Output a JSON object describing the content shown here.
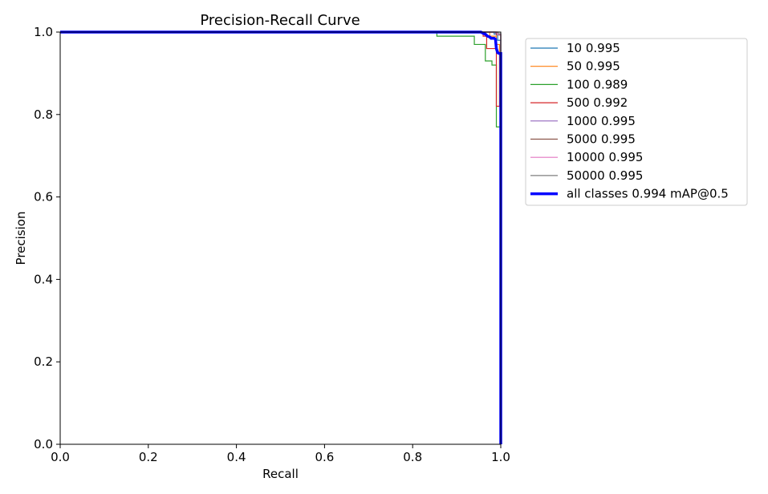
{
  "chart_data": {
    "type": "line",
    "title": "Precision-Recall Curve",
    "xlabel": "Recall",
    "ylabel": "Precision",
    "xlim": [
      0,
      1
    ],
    "ylim": [
      0,
      1
    ],
    "xticks": [
      "0.0",
      "0.2",
      "0.4",
      "0.6",
      "0.8",
      "1.0"
    ],
    "yticks": [
      "0.0",
      "0.2",
      "0.4",
      "0.6",
      "0.8",
      "1.0"
    ],
    "grid": false,
    "legend_position": "outside-right-top",
    "series": [
      {
        "name": "10 0.995",
        "color": "#1f77b4",
        "width": 1.2,
        "points": [
          [
            0,
            1.0
          ],
          [
            0.985,
            1.0
          ],
          [
            0.985,
            0.995
          ],
          [
            0.993,
            0.995
          ],
          [
            0.993,
            0.98
          ],
          [
            0.998,
            0.98
          ],
          [
            1.0,
            0.98
          ],
          [
            1.0,
            0.0
          ]
        ]
      },
      {
        "name": "50 0.995",
        "color": "#ff7f0e",
        "width": 1.2,
        "points": [
          [
            0,
            1.0
          ],
          [
            0.975,
            1.0
          ],
          [
            0.975,
            0.99
          ],
          [
            0.99,
            0.99
          ],
          [
            0.99,
            0.97
          ],
          [
            0.997,
            0.97
          ],
          [
            0.997,
            0.82
          ],
          [
            1.0,
            0.82
          ],
          [
            1.0,
            0.0
          ]
        ]
      },
      {
        "name": "100 0.989",
        "color": "#2ca02c",
        "width": 1.2,
        "points": [
          [
            0,
            1.0
          ],
          [
            0.855,
            1.0
          ],
          [
            0.855,
            0.99
          ],
          [
            0.94,
            0.99
          ],
          [
            0.94,
            0.97
          ],
          [
            0.965,
            0.97
          ],
          [
            0.965,
            0.93
          ],
          [
            0.98,
            0.93
          ],
          [
            0.98,
            0.92
          ],
          [
            0.99,
            0.92
          ],
          [
            0.99,
            0.77
          ],
          [
            1.0,
            0.77
          ],
          [
            1.0,
            0.0
          ]
        ]
      },
      {
        "name": "500 0.992",
        "color": "#d62728",
        "width": 1.2,
        "points": [
          [
            0,
            1.0
          ],
          [
            0.96,
            1.0
          ],
          [
            0.96,
            0.99
          ],
          [
            0.968,
            0.99
          ],
          [
            0.968,
            0.96
          ],
          [
            0.99,
            0.96
          ],
          [
            0.99,
            0.82
          ],
          [
            1.0,
            0.82
          ],
          [
            1.0,
            0.0
          ]
        ]
      },
      {
        "name": "1000 0.995",
        "color": "#9467bd",
        "width": 1.2,
        "points": [
          [
            0,
            1.0
          ],
          [
            0.988,
            1.0
          ],
          [
            0.988,
            0.995
          ],
          [
            1.0,
            0.995
          ],
          [
            1.0,
            0.0
          ]
        ]
      },
      {
        "name": "5000 0.995",
        "color": "#8c564b",
        "width": 1.2,
        "points": [
          [
            0,
            1.0
          ],
          [
            0.99,
            1.0
          ],
          [
            0.99,
            0.993
          ],
          [
            1.0,
            0.993
          ],
          [
            1.0,
            0.0
          ]
        ]
      },
      {
        "name": "10000 0.995",
        "color": "#e377c2",
        "width": 1.2,
        "points": [
          [
            0,
            1.0
          ],
          [
            0.992,
            1.0
          ],
          [
            0.992,
            0.994
          ],
          [
            1.0,
            0.994
          ],
          [
            1.0,
            0.0
          ]
        ]
      },
      {
        "name": "50000 0.995",
        "color": "#7f7f7f",
        "width": 1.2,
        "points": [
          [
            0,
            1.0
          ],
          [
            0.994,
            1.0
          ],
          [
            0.994,
            0.996
          ],
          [
            1.0,
            0.996
          ],
          [
            1.0,
            0.0
          ]
        ]
      },
      {
        "name": "all classes 0.994 mAP@0.5",
        "color": "#0000ff",
        "width": 3.5,
        "points": [
          [
            0,
            1.0
          ],
          [
            0.955,
            1.0
          ],
          [
            0.96,
            0.997
          ],
          [
            0.965,
            0.995
          ],
          [
            0.97,
            0.99
          ],
          [
            0.975,
            0.988
          ],
          [
            0.978,
            0.985
          ],
          [
            0.985,
            0.985
          ],
          [
            0.988,
            0.983
          ],
          [
            0.99,
            0.96
          ],
          [
            0.993,
            0.95
          ],
          [
            0.997,
            0.948
          ],
          [
            1.0,
            0.948
          ],
          [
            1.0,
            0.0
          ]
        ]
      }
    ]
  }
}
